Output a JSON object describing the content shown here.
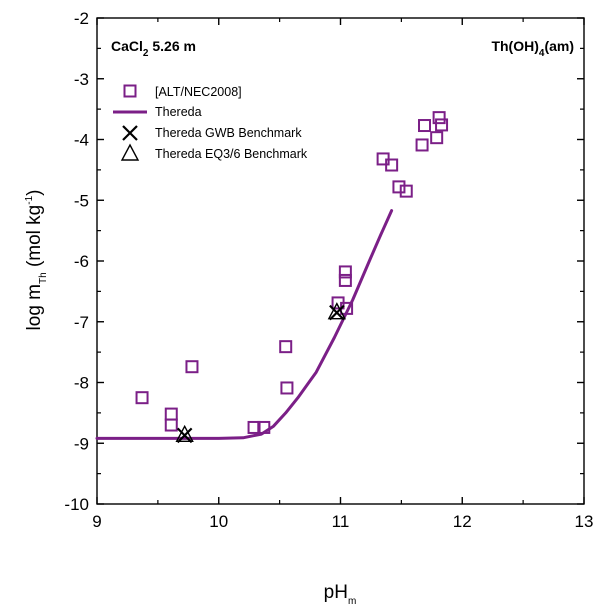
{
  "chart_data": {
    "type": "scatter",
    "xlabel": {
      "main": "pH",
      "sub": "m"
    },
    "ylabel": {
      "prefix": "log m",
      "sub": "Th",
      "unit_a": " (mol kg",
      "sup": "-1",
      "unit_b": ")"
    },
    "xlim": [
      9,
      13
    ],
    "ylim": [
      -10,
      -2
    ],
    "x_ticks": [
      "9",
      "10",
      "11",
      "12",
      "13"
    ],
    "y_ticks": [
      "-2",
      "-3",
      "-4",
      "-5",
      "-6",
      "-7",
      "-8",
      "-9",
      "-10"
    ],
    "annotations": {
      "left": {
        "main": "CaCl",
        "sub": "2",
        "rest": " 5.26 m"
      },
      "right": {
        "main": "Th(OH)",
        "sub": "4",
        "rest": "(am)"
      }
    },
    "colors": {
      "exp": "#7b1f87",
      "line": "#7b1f87",
      "bench": "#000000"
    },
    "series": [
      {
        "name": "[ALT/NEC2008]",
        "marker": "square",
        "points": [
          [
            9.37,
            -8.25
          ],
          [
            9.61,
            -8.52
          ],
          [
            9.61,
            -8.7
          ],
          [
            9.78,
            -7.74
          ],
          [
            10.29,
            -8.74
          ],
          [
            10.37,
            -8.74
          ],
          [
            10.55,
            -7.41
          ],
          [
            10.56,
            -8.09
          ],
          [
            10.98,
            -6.69
          ],
          [
            11.04,
            -6.18
          ],
          [
            11.04,
            -6.32
          ],
          [
            11.05,
            -6.78
          ],
          [
            11.35,
            -4.32
          ],
          [
            11.42,
            -4.42
          ],
          [
            11.48,
            -4.78
          ],
          [
            11.54,
            -4.85
          ],
          [
            11.67,
            -4.09
          ],
          [
            11.69,
            -3.77
          ],
          [
            11.79,
            -3.97
          ],
          [
            11.81,
            -3.64
          ],
          [
            11.83,
            -3.76
          ]
        ]
      },
      {
        "name": "Thereda",
        "marker": "line",
        "points": [
          [
            9.0,
            -8.92
          ],
          [
            10.0,
            -8.92
          ],
          [
            10.2,
            -8.91
          ],
          [
            10.35,
            -8.85
          ],
          [
            10.45,
            -8.72
          ],
          [
            10.55,
            -8.5
          ],
          [
            10.65,
            -8.25
          ],
          [
            10.8,
            -7.83
          ],
          [
            10.95,
            -7.26
          ],
          [
            11.1,
            -6.64
          ],
          [
            11.25,
            -5.94
          ],
          [
            11.33,
            -5.57
          ],
          [
            11.42,
            -5.17
          ]
        ]
      },
      {
        "name": "Thereda GWB Benchmark",
        "marker": "x",
        "points": [
          [
            9.72,
            -8.87
          ],
          [
            10.97,
            -6.85
          ]
        ]
      },
      {
        "name": "Thereda EQ3/6 Benchmark",
        "marker": "triangle",
        "points": [
          [
            9.72,
            -8.87
          ],
          [
            10.97,
            -6.85
          ]
        ]
      }
    ]
  }
}
